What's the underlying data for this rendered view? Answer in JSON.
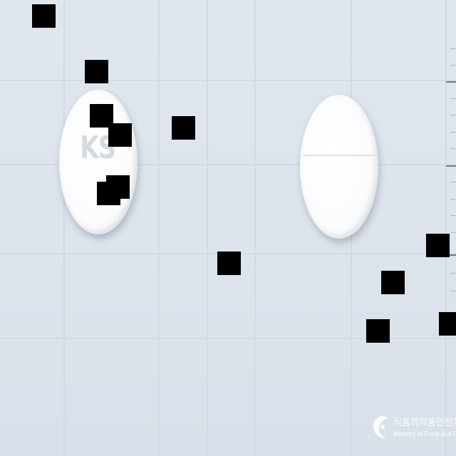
{
  "image": {
    "background_color": "#dde4ec",
    "grid_color": "#cfdbe6",
    "pill_color": "#ffffff",
    "redaction_color": "#000000"
  },
  "pills": {
    "left": {
      "imprint": "KS"
    },
    "right": {
      "imprint": ""
    }
  },
  "watermark": {
    "korean": "식품의약품안전처",
    "english": "Ministry of Food and Drug Safety",
    "logo_icon": "mfds-logo-icon"
  }
}
